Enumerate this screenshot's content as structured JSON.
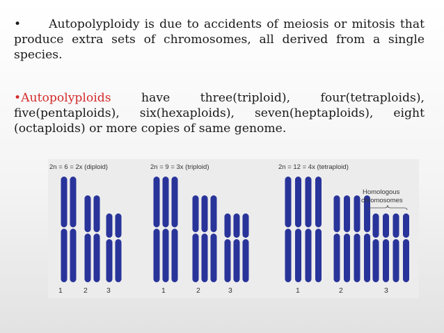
{
  "bullet1": {
    "marker": "•",
    "text": "Autopolyploidy is due to accidents of meiosis or mitosis that produce extra sets of chromosomes, all derived from  a single species."
  },
  "bullet2": {
    "marker": "•",
    "term": "Autopolyploids",
    "line1_rest": [
      "have",
      "three(triploid),",
      "four(tetraploids),"
    ],
    "rest": "five(pentaploids), six(hexaploids), seven(heptaploids), eight (octaploids) or more copies of same genome."
  },
  "figure": {
    "panels": [
      {
        "label": "2n = 6 = 2x (diploid)",
        "copies": 2,
        "numbers": [
          "1",
          "2",
          "3"
        ]
      },
      {
        "label": "2n = 9 = 3x (triploid)",
        "copies": 3,
        "numbers": [
          "1",
          "2",
          "3"
        ]
      },
      {
        "label": "2n = 12 = 4x (tetraploid)",
        "copies": 4,
        "numbers": [
          "1",
          "2",
          "3"
        ]
      }
    ],
    "annotation": [
      "Homologous",
      "chromosomes"
    ],
    "chromosome_color": "#29349a",
    "background_color": "#ececec"
  }
}
